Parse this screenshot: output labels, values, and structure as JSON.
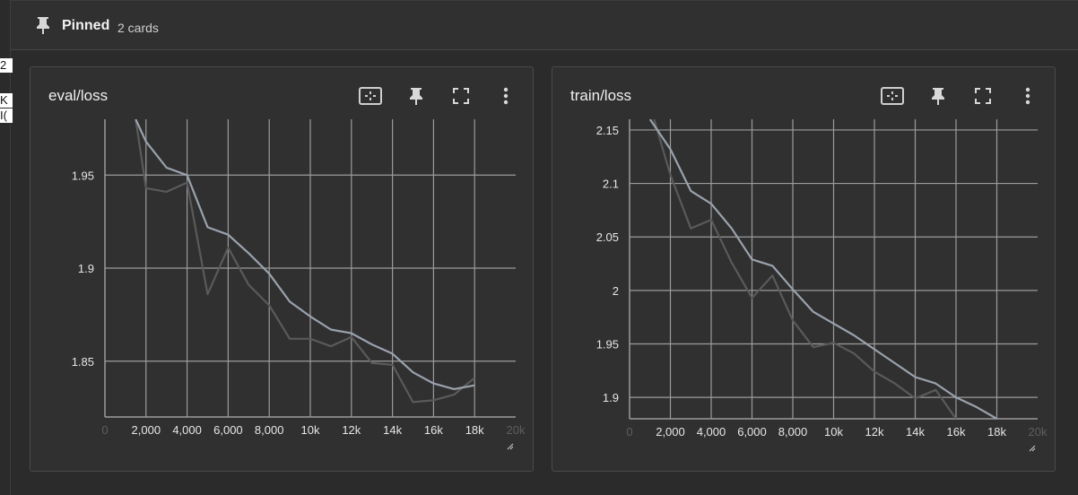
{
  "left_fragments": [
    "2",
    "K",
    "I("
  ],
  "header": {
    "title": "Pinned",
    "count": "2 cards"
  },
  "cards": [
    {
      "title": "eval/loss",
      "chart_data": {
        "type": "line",
        "title": "eval/loss",
        "xlim": [
          0,
          20000
        ],
        "ylim": [
          1.82,
          1.98
        ],
        "xticks": [
          0,
          2000,
          4000,
          6000,
          8000,
          10000,
          12000,
          14000,
          16000,
          18000,
          20000
        ],
        "xtick_labels": [
          "0",
          "2,000",
          "4,000",
          "6,000",
          "8,000",
          "10k",
          "12k",
          "14k",
          "16k",
          "18k",
          "20k"
        ],
        "yticks": [
          1.85,
          1.9,
          1.95
        ],
        "ytick_labels": [
          "1.85",
          "1.9",
          "1.95"
        ],
        "grid": true,
        "series": [
          {
            "role": "raw",
            "x": [
              1500,
              2000,
              3000,
              4000,
              5000,
              6000,
              7000,
              8000,
              9000,
              10000,
              11000,
              12000,
              13000,
              14000,
              15000,
              16000,
              17000,
              18000
            ],
            "y": [
              1.98,
              1.943,
              1.941,
              1.946,
              1.886,
              1.911,
              1.891,
              1.88,
              1.862,
              1.862,
              1.858,
              1.863,
              1.849,
              1.848,
              1.828,
              1.829,
              1.832,
              1.841
            ]
          },
          {
            "role": "smoothed",
            "x": [
              1500,
              2000,
              3000,
              4000,
              5000,
              6000,
              7000,
              8000,
              9000,
              10000,
              11000,
              12000,
              13000,
              14000,
              15000,
              16000,
              17000,
              18000
            ],
            "y": [
              1.98,
              1.968,
              1.954,
              1.95,
              1.922,
              1.918,
              1.908,
              1.897,
              1.882,
              1.874,
              1.867,
              1.865,
              1.859,
              1.854,
              1.844,
              1.838,
              1.835,
              1.837
            ]
          }
        ]
      }
    },
    {
      "title": "train/loss",
      "chart_data": {
        "type": "line",
        "title": "train/loss",
        "xlim": [
          0,
          20000
        ],
        "ylim": [
          1.88,
          2.16
        ],
        "xticks": [
          0,
          2000,
          4000,
          6000,
          8000,
          10000,
          12000,
          14000,
          16000,
          18000,
          20000
        ],
        "xtick_labels": [
          "0",
          "2,000",
          "4,000",
          "6,000",
          "8,000",
          "10k",
          "12k",
          "14k",
          "16k",
          "18k",
          "20k"
        ],
        "yticks": [
          1.9,
          1.95,
          2,
          2.05,
          2.1,
          2.15
        ],
        "ytick_labels": [
          "1.9",
          "1.95",
          "2",
          "2.05",
          "2.1",
          "2.15"
        ],
        "grid": true,
        "series": [
          {
            "role": "raw",
            "x": [
              1200,
              2000,
              3000,
              4000,
              5000,
              6000,
              7000,
              8000,
              9000,
              10000,
              11000,
              12000,
              13000,
              14000,
              15000,
              16000
            ],
            "y": [
              2.16,
              2.108,
              2.058,
              2.066,
              2.026,
              1.993,
              2.014,
              1.972,
              1.947,
              1.951,
              1.941,
              1.924,
              1.913,
              1.899,
              1.907,
              1.88
            ]
          },
          {
            "role": "smoothed",
            "x": [
              1000,
              2000,
              3000,
              4000,
              5000,
              6000,
              7000,
              8000,
              9000,
              10000,
              11000,
              12000,
              13000,
              14000,
              15000,
              16000,
              17000,
              18000
            ],
            "y": [
              2.16,
              2.132,
              2.093,
              2.081,
              2.058,
              2.029,
              2.023,
              2.001,
              1.98,
              1.969,
              1.958,
              1.945,
              1.932,
              1.919,
              1.913,
              1.9,
              1.891,
              1.88
            ]
          }
        ]
      }
    }
  ],
  "colors": {
    "smoothed": "#9aa2ad",
    "raw": "#5a5a5a",
    "grid": "#9b9b9b",
    "axis": "#9b9b9b",
    "text": "#e6e6e6"
  },
  "icons": [
    "pin-icon",
    "fit-domain-icon",
    "pin-card-icon",
    "fullscreen-icon",
    "more-vert-icon",
    "resize-handle-icon"
  ]
}
